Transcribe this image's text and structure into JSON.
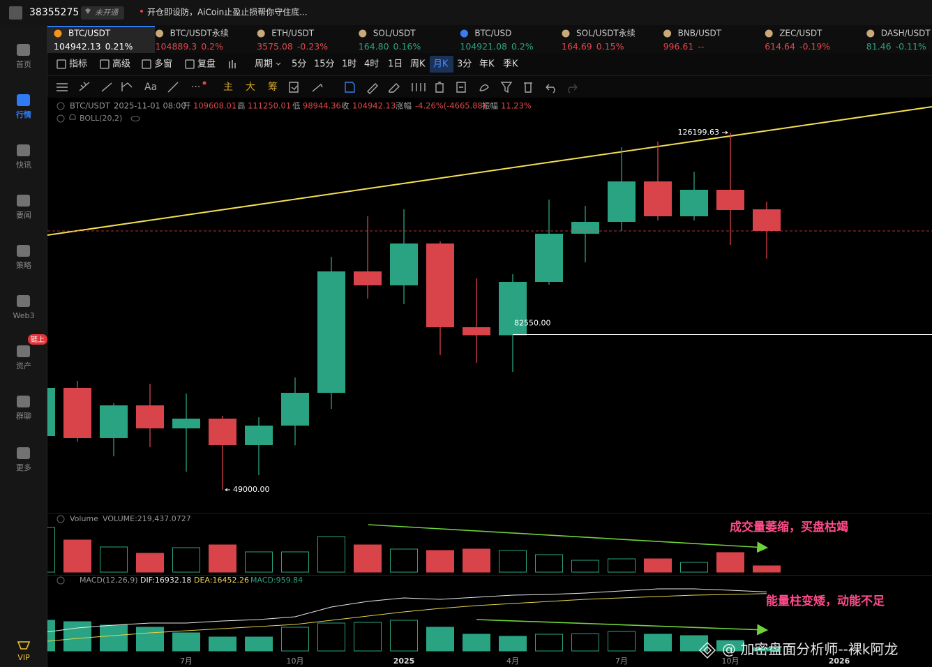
{
  "topbar": {
    "user_id": "38355275",
    "badge": "未开通",
    "notice": "开仓即设防，AiCoin止盈止损帮你守住底..."
  },
  "sidebar": [
    {
      "label": "首页"
    },
    {
      "label": "行情",
      "active": true
    },
    {
      "label": "快讯"
    },
    {
      "label": "要闻"
    },
    {
      "label": "策略"
    },
    {
      "label": "Web3"
    },
    {
      "label": "资产",
      "badge": "链上"
    },
    {
      "label": "群聊"
    },
    {
      "label": "更多"
    }
  ],
  "vip": "VIP",
  "tickers": [
    {
      "name": "BTC/USDT",
      "price": "104942.13",
      "change": "0.21%",
      "color": "#ffffff",
      "icon_color": "#f7931a",
      "active": true
    },
    {
      "name": "BTC/USDT永续",
      "price": "104889.3",
      "change": "0.2%",
      "color": "#e0474c",
      "icon_color": "#c9a97a"
    },
    {
      "name": "ETH/USDT",
      "price": "3575.08",
      "change": "-0.23%",
      "color": "#e0474c",
      "icon_color": "#c9a97a"
    },
    {
      "name": "SOL/USDT",
      "price": "164.80",
      "change": "0.16%",
      "color": "#2aa383",
      "icon_color": "#c9a97a"
    },
    {
      "name": "BTC/USD",
      "price": "104921.08",
      "change": "0.2%",
      "color": "#2aa383",
      "icon_color": "#3b7cf0"
    },
    {
      "name": "SOL/USDT永续",
      "price": "164.69",
      "change": "0.15%",
      "color": "#e0474c",
      "icon_color": "#c9a97a"
    },
    {
      "name": "BNB/USDT",
      "price": "996.61",
      "change": "--",
      "color": "#e0474c",
      "icon_color": "#c9a97a"
    },
    {
      "name": "ZEC/USDT",
      "price": "614.64",
      "change": "-0.19%",
      "color": "#e0474c",
      "icon_color": "#c9a97a"
    },
    {
      "name": "DASH/USDT",
      "price": "81.46",
      "change": "-0.11%",
      "color": "#2aa383",
      "icon_color": "#c9a97a"
    }
  ],
  "toolbar": {
    "tools": [
      "指标",
      "高级",
      "多窗",
      "复盘"
    ],
    "period_label": "周期",
    "periods": [
      "5分",
      "15分",
      "1时",
      "4时",
      "1日",
      "周K",
      "月K",
      "3分",
      "年K",
      "季K"
    ],
    "active_period": "月K",
    "overlays": [
      "主",
      "大",
      "筹"
    ]
  },
  "info": {
    "symbol": "BTC/USDT",
    "time": "2025-11-01 08:00",
    "open_label": "开",
    "high_label": "高",
    "low_label": "低",
    "close_label": "收",
    "change_label": "涨幅",
    "change": "-4.26%(-4665.88)",
    "amplitude_label": "振幅",
    "amplitude": "11.23%",
    "indicator": "BOLL(20,2)"
  },
  "notes": [
    "成交量萎缩，买盘枯竭",
    "能量柱变矮，动能不足"
  ],
  "watermark": "@ 加密盘面分析师--裸k阿龙",
  "chart_data": {
    "type": "candlestick",
    "categories": [
      null,
      null,
      null,
      null,
      "7月",
      null,
      null,
      "10月",
      null,
      null,
      "2025",
      null,
      null,
      "4月",
      null,
      null,
      "7月",
      null,
      null,
      "10月",
      null,
      null,
      "2026"
    ],
    "open": [
      60610,
      71014,
      60158,
      67245,
      62269,
      64380,
      58650,
      62872,
      69959,
      96195,
      93179,
      102226,
      84132,
      82400,
      93933,
      104337,
      106900,
      115645,
      108106,
      113836,
      109608.01,
      null,
      null
    ],
    "high": [
      72000,
      72522,
      67698,
      71919,
      69808,
      64983,
      64682,
      73276,
      99361,
      108106,
      109614,
      102700,
      94687,
      95592,
      111725,
      110368,
      123033,
      124240,
      117756,
      126199.63,
      111250.01,
      null,
      null
    ],
    "low": [
      60000,
      59404,
      56238,
      58198,
      52921,
      49000,
      52167,
      58600,
      66491,
      90314,
      89108,
      78101,
      76442,
      74482,
      93330,
      98155,
      104940,
      107202,
      107202,
      101924,
      98944.36,
      null,
      null
    ],
    "close": [
      71014,
      60158,
      67245,
      62269,
      64380,
      58650,
      62872,
      69959,
      96195,
      93179,
      102226,
      84132,
      82400,
      93933,
      104337,
      106900,
      115645,
      108106,
      113836,
      109463,
      104942.13,
      null,
      null
    ],
    "ylim": [
      44024,
      133738
    ],
    "up_color": "#2aa383",
    "down_color": "#d9434a",
    "trend_color": "#f5e050",
    "annotations": [
      {
        "text": "126199.63",
        "value": 126199.63
      },
      {
        "text": "49000.00",
        "value": 49000
      },
      {
        "text": "82550.00",
        "value": 82550
      }
    ],
    "volume": {
      "title": "Volume",
      "label": "VOLUME:219,437.0727",
      "ylim": [
        0,
        1950000
      ],
      "values": [
        1560000,
        1122000,
        878000,
        658000,
        853000,
        951000,
        707000,
        707000,
        1243000,
        951000,
        805000,
        756000,
        805000,
        756000,
        610000,
        414000,
        463000,
        463000,
        341000,
        683000,
        219437.0727,
        null,
        null
      ]
    },
    "macd": {
      "title": "MACD(12,26,9)",
      "ylim": [
        0,
        18600
      ],
      "dif": {
        "label": "DIF:16932.18",
        "color": "#e8e8e8",
        "values": [
          5200,
          6600,
          7400,
          8000,
          8000,
          8600,
          9000,
          9800,
          12600,
          14200,
          15200,
          14800,
          15400,
          16000,
          16200,
          16600,
          17200,
          17800,
          17800,
          17400,
          16932.18,
          null,
          null
        ]
      },
      "dea": {
        "label": "DEA:16452.26",
        "color": "#e8d44d",
        "values": [
          2600,
          3600,
          4400,
          5200,
          5800,
          6400,
          7000,
          7600,
          8800,
          10000,
          11200,
          12200,
          13000,
          13600,
          14200,
          14800,
          15200,
          15600,
          16000,
          16200,
          16452.26,
          null,
          null
        ]
      },
      "hist": {
        "label": "MACD:959.84",
        "color": "#2aa383",
        "values": [
          8800,
          8400,
          7400,
          6800,
          5200,
          4000,
          4000,
          6800,
          8000,
          8200,
          8800,
          6800,
          4800,
          4200,
          4800,
          4900,
          5600,
          4800,
          4400,
          3000,
          959.84,
          null,
          null
        ]
      }
    }
  }
}
